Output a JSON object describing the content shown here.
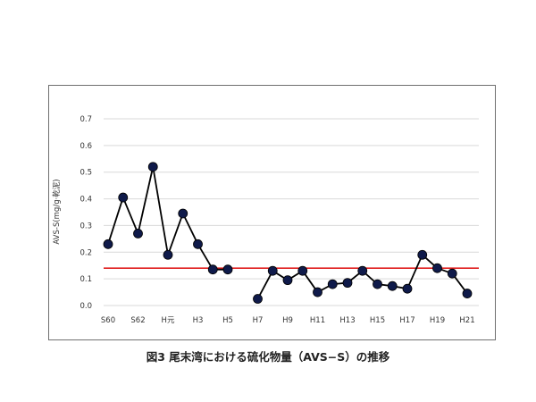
{
  "chart_data": {
    "type": "line",
    "xlabel": "",
    "ylabel": "AVS-S(mg/g·乾泥)",
    "ylim": [
      0,
      0.7
    ],
    "yticks": [
      "0.0",
      "0.1",
      "0.2",
      "0.3",
      "0.4",
      "0.5",
      "0.6",
      "0.7"
    ],
    "grid": true,
    "legend": "none",
    "x": [
      "S60",
      "S61",
      "S62",
      "S63",
      "H元",
      "H2",
      "H3",
      "H4",
      "H5",
      "H6",
      "H7",
      "H8",
      "H9",
      "H10",
      "H11",
      "H12",
      "H13",
      "H14",
      "H15",
      "H16",
      "H17",
      "H18",
      "H19",
      "H20",
      "H21"
    ],
    "xtick_labels": [
      "S60",
      "S62",
      "H元",
      "H3",
      "H5",
      "H7",
      "H9",
      "H11",
      "H13",
      "H15",
      "H17",
      "H19",
      "H21"
    ],
    "series": [
      {
        "values": [
          0.23,
          0.405,
          0.27,
          0.52,
          0.19,
          0.345,
          0.23,
          0.135,
          0.135,
          null,
          0.025,
          0.13,
          0.095,
          0.13,
          0.05,
          0.08,
          0.085,
          0.13,
          0.08,
          0.073,
          0.063,
          0.19,
          0.14,
          0.12,
          0.045
        ],
        "color": "#000000",
        "marker_color": "#0f1a4a"
      }
    ],
    "reference_line": {
      "value": 0.14,
      "color": "#e02020"
    }
  },
  "caption": "図3  尾末湾における硫化物量（AVS−S）の推移"
}
